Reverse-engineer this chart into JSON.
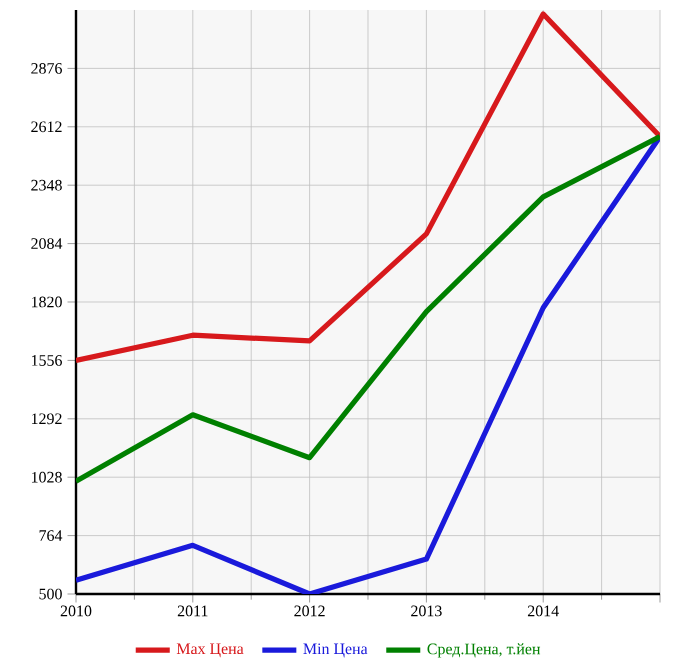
{
  "chart_data": {
    "type": "line",
    "categories": [
      "2010",
      "2011",
      "2012",
      "2013",
      "2014",
      null
    ],
    "series": [
      {
        "name": "Max Цена",
        "color": "#d7191c",
        "values": [
          1556,
          1670,
          1644,
          2128,
          3122,
          2568
        ]
      },
      {
        "name": "Min Цена",
        "color": "#1a1adb",
        "values": [
          562,
          720,
          500,
          658,
          1794,
          2568
        ]
      },
      {
        "name": "Сред.Цена, т.йен",
        "color": "#008000",
        "values": [
          1010,
          1310,
          1116,
          1776,
          2295,
          2568
        ]
      }
    ],
    "ylim": [
      500,
      3140
    ],
    "yticks": [
      500,
      764,
      1028,
      1292,
      1556,
      1820,
      2084,
      2348,
      2612,
      2876
    ],
    "grid": true,
    "legend": "bottom",
    "marker": "none",
    "line_style": "solid"
  }
}
